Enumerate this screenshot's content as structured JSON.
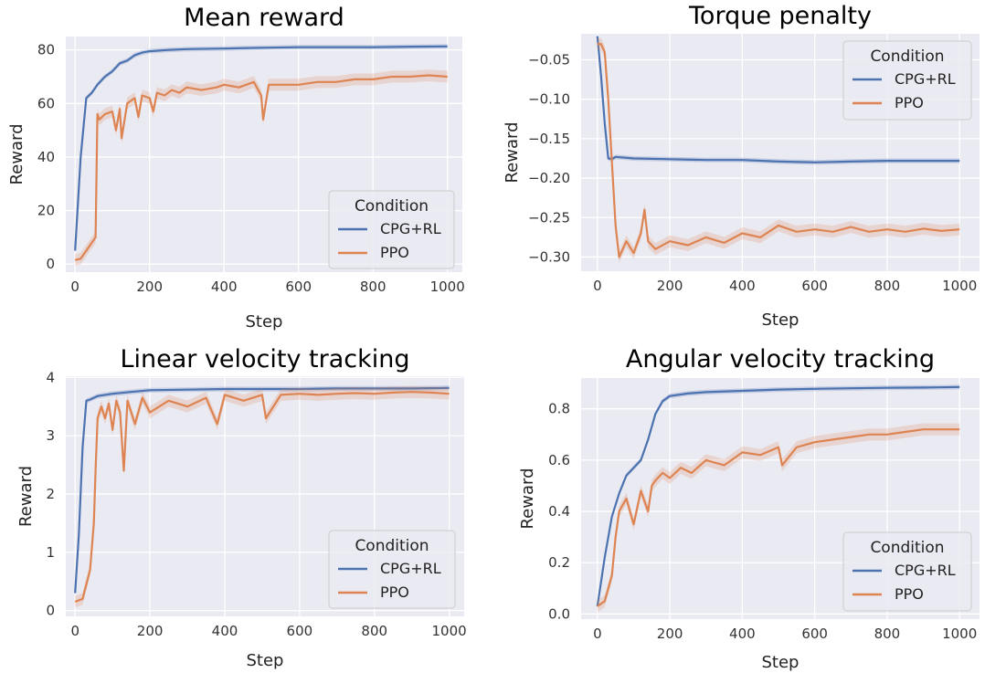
{
  "colors": {
    "background": "#eaeaf2",
    "grid": "#ffffff",
    "cpg": "#4c72b0",
    "ppo": "#dd8452"
  },
  "chart_data": [
    {
      "type": "line",
      "title": "Mean reward",
      "xlabel": "Step",
      "ylabel": "Reward",
      "xlim": [
        -25,
        1040
      ],
      "ylim": [
        -3,
        85
      ],
      "xticks": [
        0,
        200,
        400,
        600,
        800,
        1000
      ],
      "yticks": [
        0,
        20,
        40,
        60,
        80
      ],
      "legend": {
        "title": "Condition",
        "position": "lower-right",
        "entries": [
          "CPG+RL",
          "PPO"
        ]
      },
      "series": [
        {
          "name": "CPG+RL",
          "color": "#4c72b0",
          "x": [
            0,
            15,
            30,
            45,
            60,
            80,
            100,
            120,
            140,
            160,
            180,
            200,
            250,
            300,
            400,
            500,
            600,
            700,
            800,
            900,
            1000
          ],
          "y": [
            5,
            40,
            62,
            64,
            67,
            70,
            72,
            75,
            76,
            78,
            79,
            79.5,
            80,
            80.3,
            80.5,
            80.8,
            81,
            81,
            81,
            81.2,
            81.3
          ]
        },
        {
          "name": "PPO",
          "color": "#dd8452",
          "x": [
            0,
            15,
            30,
            45,
            55,
            60,
            65,
            80,
            100,
            110,
            120,
            125,
            140,
            160,
            170,
            180,
            200,
            210,
            220,
            240,
            260,
            280,
            300,
            340,
            380,
            400,
            440,
            480,
            500,
            505,
            520,
            560,
            600,
            650,
            700,
            750,
            800,
            850,
            900,
            950,
            1000
          ],
          "y": [
            1.5,
            2,
            5,
            8,
            10,
            56,
            54,
            56,
            57,
            50,
            58,
            47,
            60,
            62,
            55,
            63,
            62,
            57,
            64,
            63,
            65,
            64,
            66,
            65,
            66,
            67,
            66,
            68,
            63,
            54,
            67,
            67,
            67,
            68,
            68,
            69,
            69,
            70,
            70,
            70.5,
            70
          ]
        }
      ]
    },
    {
      "type": "line",
      "title": "Torque penalty",
      "xlabel": "Step",
      "ylabel": "Reward",
      "xlim": [
        -45,
        1055
      ],
      "ylim": [
        -0.318,
        -0.017
      ],
      "xticks": [
        0,
        200,
        400,
        600,
        800,
        1000
      ],
      "yticks": [
        -0.3,
        -0.25,
        -0.2,
        -0.15,
        -0.1,
        -0.05
      ],
      "legend": {
        "title": "Condition",
        "position": "top-right",
        "entries": [
          "CPG+RL",
          "PPO"
        ]
      },
      "series": [
        {
          "name": "CPG+RL",
          "color": "#4c72b0",
          "x": [
            0,
            10,
            20,
            30,
            40,
            50,
            100,
            200,
            300,
            400,
            500,
            600,
            700,
            800,
            900,
            1000
          ],
          "y": [
            -0.02,
            -0.07,
            -0.13,
            -0.175,
            -0.176,
            -0.173,
            -0.175,
            -0.176,
            -0.177,
            -0.177,
            -0.179,
            -0.18,
            -0.179,
            -0.178,
            -0.178,
            -0.178
          ]
        },
        {
          "name": "PPO",
          "color": "#dd8452",
          "x": [
            0,
            10,
            20,
            30,
            40,
            50,
            60,
            80,
            100,
            120,
            130,
            140,
            160,
            200,
            250,
            300,
            350,
            400,
            450,
            500,
            550,
            600,
            650,
            700,
            750,
            800,
            850,
            900,
            950,
            1000
          ],
          "y": [
            -0.03,
            -0.03,
            -0.04,
            -0.1,
            -0.18,
            -0.26,
            -0.3,
            -0.28,
            -0.295,
            -0.27,
            -0.24,
            -0.28,
            -0.29,
            -0.28,
            -0.285,
            -0.275,
            -0.282,
            -0.27,
            -0.275,
            -0.26,
            -0.268,
            -0.265,
            -0.268,
            -0.262,
            -0.268,
            -0.265,
            -0.268,
            -0.264,
            -0.267,
            -0.265
          ]
        }
      ]
    },
    {
      "type": "line",
      "title": "Linear velocity tracking",
      "xlabel": "Step",
      "ylabel": "Reward",
      "xlim": [
        -25,
        1040
      ],
      "ylim": [
        -0.1,
        4.02
      ],
      "xticks": [
        0,
        200,
        400,
        600,
        800,
        1000
      ],
      "yticks": [
        0,
        1,
        2,
        3,
        4
      ],
      "legend": {
        "title": "Condition",
        "position": "lower-right",
        "entries": [
          "CPG+RL",
          "PPO"
        ]
      },
      "series": [
        {
          "name": "CPG+RL",
          "color": "#4c72b0",
          "x": [
            0,
            10,
            20,
            30,
            40,
            60,
            80,
            100,
            150,
            200,
            300,
            400,
            500,
            600,
            700,
            800,
            900,
            1000
          ],
          "y": [
            0.3,
            1.3,
            2.8,
            3.6,
            3.62,
            3.68,
            3.7,
            3.72,
            3.75,
            3.78,
            3.79,
            3.8,
            3.8,
            3.8,
            3.81,
            3.81,
            3.81,
            3.82
          ]
        },
        {
          "name": "PPO",
          "color": "#dd8452",
          "x": [
            0,
            20,
            40,
            50,
            55,
            60,
            70,
            80,
            90,
            100,
            110,
            120,
            130,
            140,
            160,
            180,
            200,
            250,
            300,
            350,
            380,
            400,
            450,
            500,
            510,
            550,
            600,
            650,
            700,
            750,
            800,
            850,
            900,
            950,
            1000
          ],
          "y": [
            0.15,
            0.2,
            0.7,
            1.5,
            2.5,
            3.3,
            3.5,
            3.3,
            3.55,
            3.1,
            3.6,
            3.4,
            2.4,
            3.6,
            3.2,
            3.65,
            3.4,
            3.6,
            3.5,
            3.65,
            3.2,
            3.7,
            3.6,
            3.7,
            3.3,
            3.7,
            3.72,
            3.7,
            3.72,
            3.73,
            3.72,
            3.74,
            3.75,
            3.74,
            3.72
          ]
        }
      ]
    },
    {
      "type": "line",
      "title": "Angular velocity tracking",
      "xlabel": "Step",
      "ylabel": "Reward",
      "xlim": [
        -45,
        1055
      ],
      "ylim": [
        -0.02,
        0.92
      ],
      "xticks": [
        0,
        200,
        400,
        600,
        800,
        1000
      ],
      "yticks": [
        0.0,
        0.2,
        0.4,
        0.6,
        0.8
      ],
      "legend": {
        "title": "Condition",
        "position": "lower-right",
        "entries": [
          "CPG+RL",
          "PPO"
        ]
      },
      "series": [
        {
          "name": "CPG+RL",
          "color": "#4c72b0",
          "x": [
            0,
            20,
            40,
            60,
            80,
            100,
            120,
            140,
            160,
            180,
            200,
            250,
            300,
            400,
            500,
            600,
            700,
            800,
            900,
            1000
          ],
          "y": [
            0.03,
            0.22,
            0.38,
            0.47,
            0.54,
            0.57,
            0.6,
            0.68,
            0.78,
            0.83,
            0.85,
            0.86,
            0.865,
            0.87,
            0.875,
            0.878,
            0.88,
            0.882,
            0.883,
            0.885
          ]
        },
        {
          "name": "PPO",
          "color": "#dd8452",
          "x": [
            0,
            20,
            40,
            50,
            60,
            80,
            100,
            120,
            140,
            150,
            160,
            180,
            200,
            230,
            260,
            300,
            350,
            400,
            450,
            500,
            510,
            550,
            600,
            650,
            700,
            750,
            800,
            850,
            900,
            950,
            1000
          ],
          "y": [
            0.03,
            0.05,
            0.15,
            0.3,
            0.4,
            0.45,
            0.35,
            0.48,
            0.4,
            0.5,
            0.52,
            0.55,
            0.53,
            0.57,
            0.55,
            0.6,
            0.58,
            0.63,
            0.62,
            0.65,
            0.58,
            0.65,
            0.67,
            0.68,
            0.69,
            0.7,
            0.7,
            0.71,
            0.72,
            0.72,
            0.72
          ]
        }
      ]
    }
  ]
}
